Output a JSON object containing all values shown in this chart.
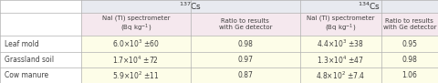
{
  "title_cs137": "$^{137}$Cs",
  "title_cs134": "$^{134}$Cs",
  "col_header_nal": "NaI (Tl) spectrometer\n(Bq kg$^{-1}$)",
  "col_header_ratio": "Ratio to results\nwith Ge detector",
  "rows": [
    "Leaf mold",
    "Grassland soil",
    "Cow manure"
  ],
  "cs137_val": [
    "6.0×10$^{3}$ ±60",
    "1.7×10$^{4}$ ±72",
    "5.9×10$^{2}$ ±11"
  ],
  "cs137_ratio": [
    "0.98",
    "0.97",
    "0.87"
  ],
  "cs134_val": [
    "4.4×10$^{3}$ ±38",
    "1.3×10$^{4}$ ±47",
    "4.8×10$^{2}$ ±7.4"
  ],
  "cs134_ratio": [
    "0.95",
    "0.98",
    "1.06"
  ],
  "top_header_bg": "#e8eaf0",
  "sub_header_bg": "#f5e8ee",
  "row_bg": "#fdfde8",
  "row_label_bg": "#ffffff",
  "border_color": "#b0b0b0",
  "text_color": "#404040",
  "figw": 4.8,
  "figh": 0.91,
  "dpi": 100
}
